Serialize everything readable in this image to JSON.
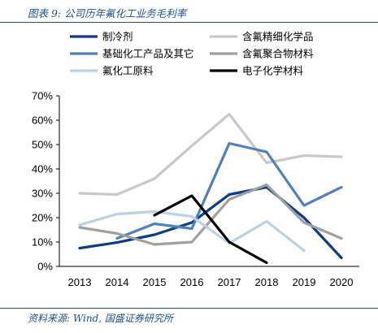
{
  "figure": {
    "title": "图表 9:  公司历年氟化工业务毛利率",
    "source": "资料来源:  Wind, 国盛证券研究所"
  },
  "chart_data": {
    "type": "line",
    "title": "",
    "xlabel": "",
    "ylabel": "",
    "x": [
      "2013",
      "2014",
      "2015",
      "2016",
      "2017",
      "2018",
      "2019",
      "2020"
    ],
    "y_ticks": [
      "0%",
      "10%",
      "20%",
      "30%",
      "40%",
      "50%",
      "60%",
      "70%"
    ],
    "ylim": [
      0,
      70
    ],
    "grid": false,
    "legend_position": "top",
    "series": [
      {
        "name": "制冷剂",
        "color": "#0b3d8c",
        "width": 3.2,
        "values": [
          7.5,
          9.8,
          13.0,
          18.0,
          29.5,
          32.5,
          20.0,
          3.5
        ]
      },
      {
        "name": "含氟精细化学品",
        "color": "#c9c9c9",
        "width": 3.2,
        "values": [
          30.0,
          29.5,
          36.0,
          49.5,
          62.5,
          42.5,
          45.5,
          45.0
        ]
      },
      {
        "name": "基础化工产品及其它",
        "color": "#4f81bd",
        "width": 3.2,
        "values": [
          null,
          11.5,
          17.5,
          15.5,
          50.5,
          47.0,
          25.0,
          32.5
        ]
      },
      {
        "name": "含氟聚合物材料",
        "color": "#a0a0a0",
        "width": 3.2,
        "values": [
          16.0,
          13.5,
          9.0,
          10.0,
          27.5,
          33.5,
          18.0,
          11.5
        ]
      },
      {
        "name": "氟化工原料",
        "color": "#bcd0e6",
        "width": 3.2,
        "values": [
          17.0,
          21.5,
          22.5,
          20.5,
          9.5,
          18.5,
          6.5,
          null
        ]
      },
      {
        "name": "电子化学材料",
        "color": "#000000",
        "width": 3.2,
        "values": [
          null,
          null,
          21.0,
          29.0,
          10.0,
          1.5,
          null,
          null
        ]
      }
    ]
  }
}
